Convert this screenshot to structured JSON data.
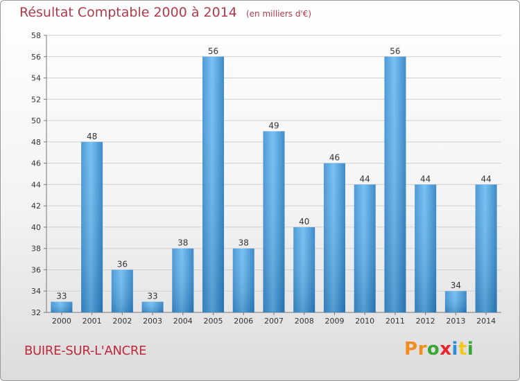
{
  "header": {
    "title": "Résultat Comptable 2000 à 2014",
    "unit": "(en milliers d'€)"
  },
  "footer": {
    "city": "BUIRE-SUR-L'ANCRE",
    "brand": "Proxiti",
    "brand_colors": [
      "#f28c1e",
      "#f28c1e",
      "#3aa635",
      "#e8262a",
      "#2a8fd6",
      "#f2c81e",
      "#3aa635"
    ]
  },
  "colors": {
    "bar_light": "#64b6ee",
    "bar_dark": "#2a7cc0",
    "grid": "#d0d0d0",
    "axis_text": "#333333"
  },
  "chart_data": {
    "type": "bar",
    "title": "Résultat Comptable 2000 à 2014",
    "xlabel": "",
    "ylabel": "",
    "categories": [
      "2000",
      "2001",
      "2002",
      "2003",
      "2004",
      "2005",
      "2006",
      "2007",
      "2008",
      "2009",
      "2010",
      "2011",
      "2012",
      "2013",
      "2014"
    ],
    "values": [
      33,
      48,
      36,
      33,
      38,
      56,
      38,
      49,
      40,
      46,
      44,
      56,
      44,
      34,
      44
    ],
    "ylim": [
      32,
      58
    ],
    "yticks": [
      32,
      34,
      36,
      38,
      40,
      42,
      44,
      46,
      48,
      50,
      52,
      54,
      56,
      58
    ],
    "grid": true,
    "legend": "none"
  }
}
